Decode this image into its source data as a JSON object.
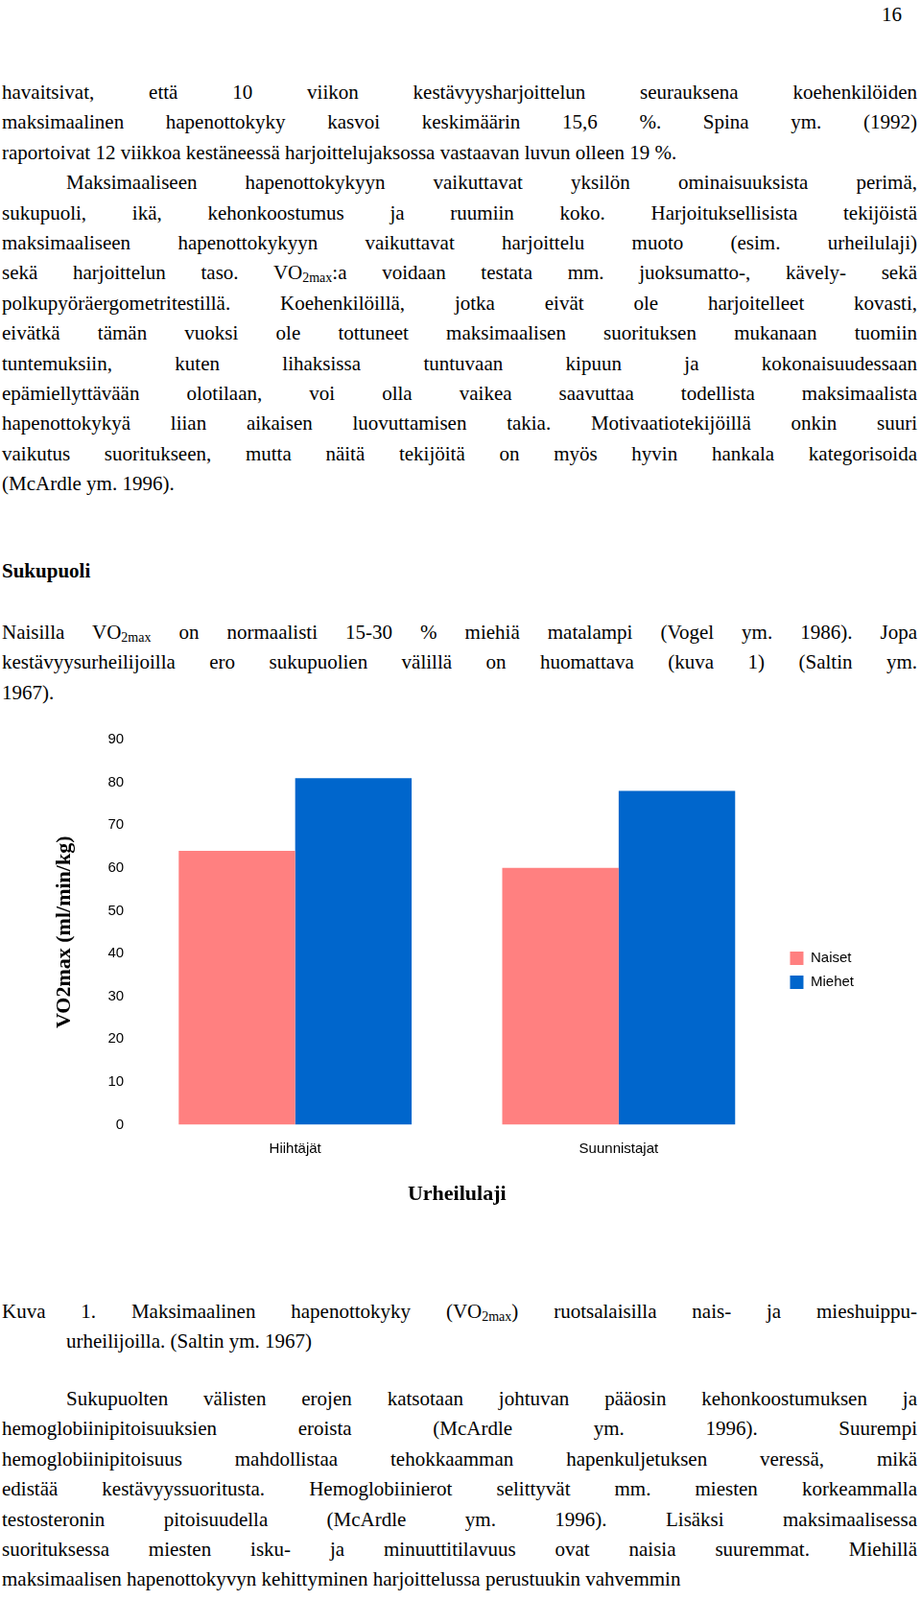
{
  "page_number": "16",
  "text_before": {
    "continued": [
      "havaitsivat, että 10 viikon kestävyysharjoittelun seurauksena koehenkilöiden",
      "maksimaalinen hapenottokyky kasvoi keskimäärin 15,6 %. Spina ym. (1992)",
      "raportoivat 12 viikkoa kestäneessä harjoittelujaksossa vastaavan luvun olleen 19 %."
    ],
    "paragraph": [
      "Maksimaaliseen hapenottokykyyn vaikuttavat yksilön ominaisuuksista perimä,",
      "sukupuoli, ikä, kehonkoostumus ja ruumiin koko. Harjoituksellisista tekijöistä",
      "maksimaaliseen hapenottokykyyn vaikuttavat harjoittelu muoto (esim. urheilulaji)",
      [
        "sekä harjoittelun taso. VO",
        {
          "sub": "2max"
        },
        ":a voidaan testata mm. juoksumatto-, kävely- sekä"
      ],
      "polkupyöräergometritestillä. Koehenkilöillä, jotka eivät ole harjoitelleet kovasti,",
      "eivätkä tämän vuoksi ole tottuneet maksimaalisen suorituksen mukanaan tuomiin",
      "tuntemuksiin, kuten lihaksissa tuntuvaan kipuun ja kokonaisuudessaan",
      "epämiellyttävään olotilaan, voi olla vaikea saavuttaa todellista maksimaalista",
      "hapenottokykyä liian aikaisen luovuttamisen takia. Motivaatiotekijöillä onkin suuri",
      "vaikutus suoritukseen, mutta näitä tekijöitä on myös hyvin hankala kategorisoida",
      "(McArdle ym. 1996)."
    ]
  },
  "section": {
    "heading": "Sukupuoli",
    "paragraph": [
      [
        "Naisilla VO",
        {
          "sub": "2max"
        },
        " on normaalisti 15-30 % miehiä matalampi (Vogel ym. 1986). Jopa"
      ],
      "kestävyysurheilijoilla ero sukupuolien välillä on huomattava (kuva 1) (Saltin ym.",
      "1967)."
    ]
  },
  "chart_data": {
    "type": "bar",
    "categories": [
      "Hiihtäjät",
      "Suunnistajat"
    ],
    "series": [
      {
        "name": "Naiset",
        "color": "#ff8080",
        "values": [
          64,
          60
        ]
      },
      {
        "name": "Miehet",
        "color": "#0066cc",
        "values": [
          81,
          78
        ]
      }
    ],
    "x_label": "Urheilulaji",
    "y_label": "VO2max (ml/min/kg)",
    "ylim": [
      0,
      90
    ],
    "yticks": [
      0,
      10,
      20,
      30,
      40,
      50,
      60,
      70,
      80,
      90
    ],
    "grid": false,
    "legend": "right"
  },
  "caption": [
    [
      "Kuva 1. Maksimaalinen hapenottokyky (VO",
      {
        "sub": "2max"
      },
      ") ruotsalaisilla nais- ja mieshuippu-"
    ],
    "urheilijoilla. (Saltin ym. 1967)"
  ],
  "text_after": [
    "Sukupuolten välisten erojen katsotaan johtuvan pääosin kehonkoostumuksen ja",
    "hemoglobiinipitoisuuksien eroista (McArdle ym. 1996). Suurempi",
    "hemoglobiinipitoisuus mahdollistaa tehokkaamman hapenkuljetuksen veressä, mikä",
    "edistää kestävyyssuoritusta. Hemoglobiinierot selittyvät mm. miesten korkeammalla",
    "testosteronin pitoisuudella (McArdle ym. 1996). Lisäksi maksimaalisessa",
    "suorituksessa miesten isku- ja minuuttitilavuus ovat naisia suuremmat. Miehillä",
    "maksimaalisen hapenottokyvyn kehittyminen harjoittelussa perustuukin vahvemmin"
  ]
}
